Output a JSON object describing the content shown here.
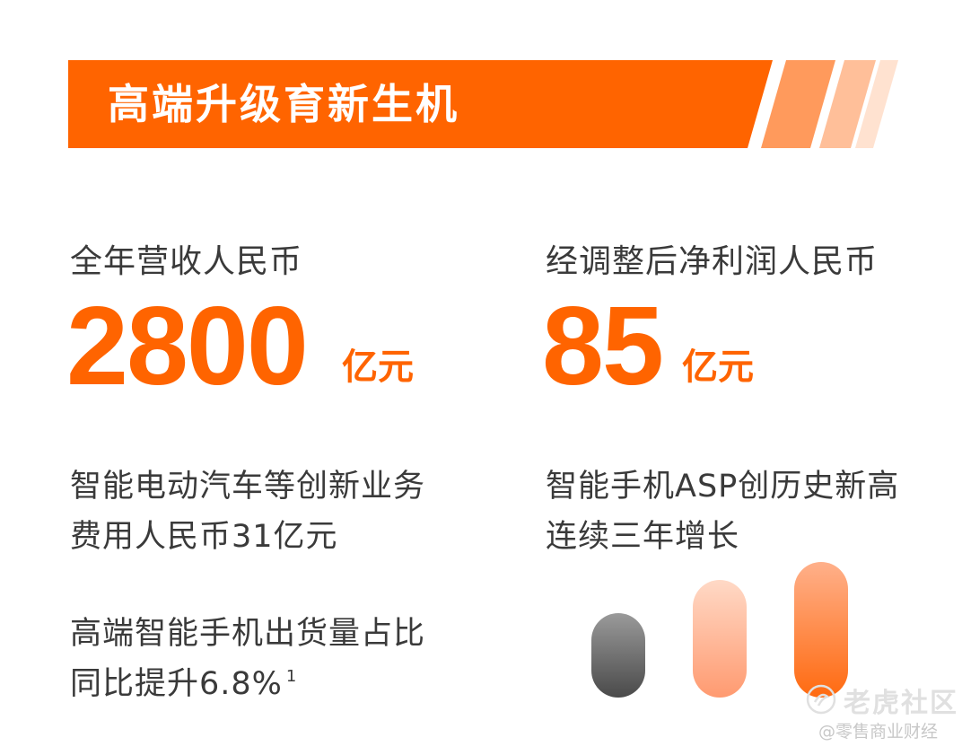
{
  "banner": {
    "title": "高端升级育新生机",
    "color": "#ff6400"
  },
  "stats": {
    "revenue_label": "全年营收人民币",
    "revenue_value": "2800",
    "revenue_unit": "亿元",
    "profit_label": "经调整后净利润人民币",
    "profit_value": "85",
    "profit_unit": "亿元"
  },
  "highlights": {
    "ev_line1": "智能电动汽车等创新业务",
    "ev_line2": "费用人民币31亿元",
    "premium_line1": "高端智能手机出货量占比",
    "premium_line2": "同比提升6.8%",
    "premium_footnote": "1",
    "asp_line1": "智能手机ASP创历史新高",
    "asp_line2": "连续三年增长"
  },
  "watermark": {
    "main": "老虎社区",
    "sub": "@零售商业财经"
  }
}
